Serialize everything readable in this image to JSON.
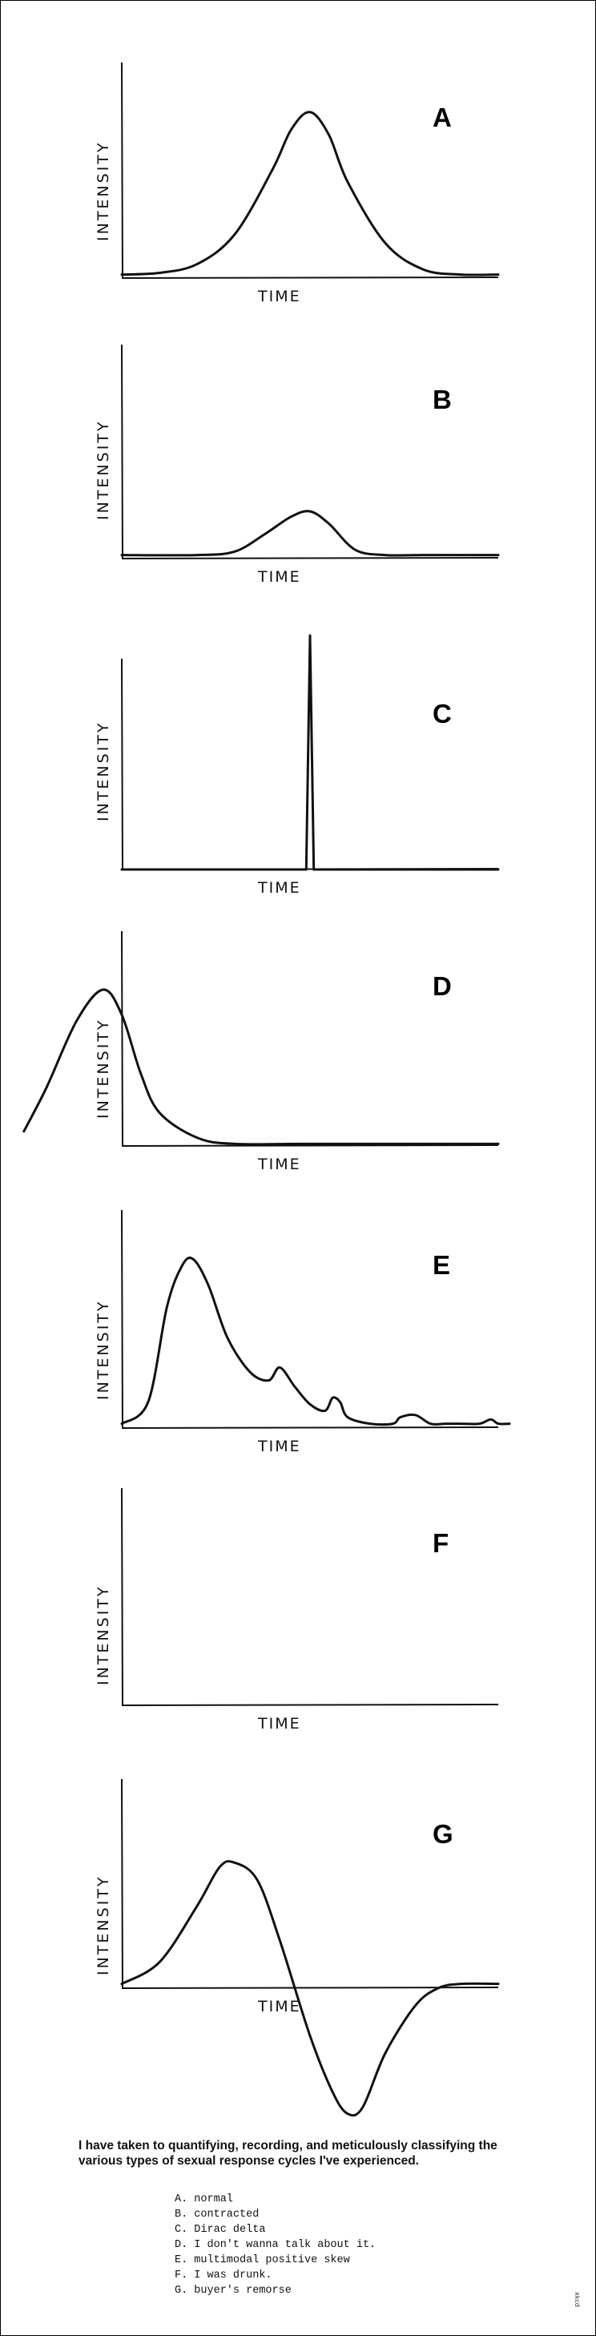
{
  "chart_data": [
    {
      "type": "line",
      "title": "A",
      "xlabel": "TIME",
      "ylabel": "INTENSITY",
      "shape": "normal",
      "x": [
        0,
        0.1,
        0.2,
        0.3,
        0.4,
        0.45,
        0.5,
        0.55,
        0.6,
        0.7,
        0.8,
        0.9,
        1.0
      ],
      "y": [
        0.02,
        0.03,
        0.08,
        0.25,
        0.62,
        0.85,
        0.95,
        0.82,
        0.55,
        0.2,
        0.05,
        0.02,
        0.02
      ]
    },
    {
      "type": "line",
      "title": "B",
      "xlabel": "TIME",
      "ylabel": "INTENSITY",
      "shape": "contracted",
      "x": [
        0,
        0.2,
        0.3,
        0.38,
        0.45,
        0.5,
        0.55,
        0.62,
        0.7,
        0.8,
        1.0
      ],
      "y": [
        0.02,
        0.02,
        0.04,
        0.14,
        0.24,
        0.27,
        0.2,
        0.05,
        0.02,
        0.02,
        0.02
      ]
    },
    {
      "type": "line",
      "title": "C",
      "xlabel": "TIME",
      "ylabel": "INTENSITY",
      "shape": "Dirac delta",
      "x": [
        0,
        0.49,
        0.5,
        0.51,
        1.0
      ],
      "y": [
        0,
        0,
        1.0,
        0,
        0
      ]
    },
    {
      "type": "line",
      "title": "D",
      "xlabel": "TIME",
      "ylabel": "INTENSITY",
      "shape": "peak before origin",
      "x": [
        -0.26,
        -0.2,
        -0.12,
        -0.05,
        0,
        0.05,
        0.1,
        0.2,
        0.3,
        0.5,
        1.0
      ],
      "y": [
        0.07,
        0.28,
        0.6,
        0.75,
        0.63,
        0.35,
        0.16,
        0.04,
        0.01,
        0.01,
        0.01
      ]
    },
    {
      "type": "line",
      "title": "E",
      "xlabel": "TIME",
      "ylabel": "INTENSITY",
      "shape": "multimodal positive skew",
      "x": [
        0,
        0.07,
        0.12,
        0.16,
        0.19,
        0.23,
        0.28,
        0.34,
        0.39,
        0.42,
        0.46,
        0.5,
        0.54,
        0.56,
        0.58,
        0.6,
        0.66,
        0.72,
        0.74,
        0.78,
        0.82,
        0.86,
        0.9,
        0.95,
        0.98,
        1.0,
        1.03
      ],
      "y": [
        0.02,
        0.12,
        0.56,
        0.75,
        0.78,
        0.66,
        0.42,
        0.26,
        0.22,
        0.28,
        0.19,
        0.11,
        0.08,
        0.14,
        0.12,
        0.05,
        0.02,
        0.02,
        0.05,
        0.06,
        0.02,
        0.02,
        0.02,
        0.02,
        0.04,
        0.02,
        0.02
      ]
    },
    {
      "type": "line",
      "title": "F",
      "xlabel": "TIME",
      "ylabel": "INTENSITY",
      "shape": "empty",
      "x": [],
      "y": []
    },
    {
      "type": "line",
      "title": "G",
      "xlabel": "TIME",
      "ylabel": "INTENSITY",
      "shape": "positive then negative",
      "x": [
        0,
        0.1,
        0.2,
        0.26,
        0.3,
        0.36,
        0.42,
        0.5,
        0.56,
        0.6,
        0.64,
        0.7,
        0.78,
        0.84,
        0.9,
        1.0
      ],
      "y": [
        0.02,
        0.12,
        0.38,
        0.56,
        0.58,
        0.5,
        0.22,
        -0.22,
        -0.48,
        -0.58,
        -0.55,
        -0.3,
        -0.08,
        0.0,
        0.02,
        0.02
      ]
    }
  ],
  "caption": "I have taken to quantifying, recording, and meticulously classifying the various types of sexual response cycles I've experienced.",
  "legend": [
    "A. normal",
    "B. contracted",
    "C. Dirac delta",
    "D. I don't wanna talk about it.",
    "E. multimodal positive skew",
    "F. I was drunk.",
    "G. buyer's remorse"
  ],
  "signature": "xkcd"
}
